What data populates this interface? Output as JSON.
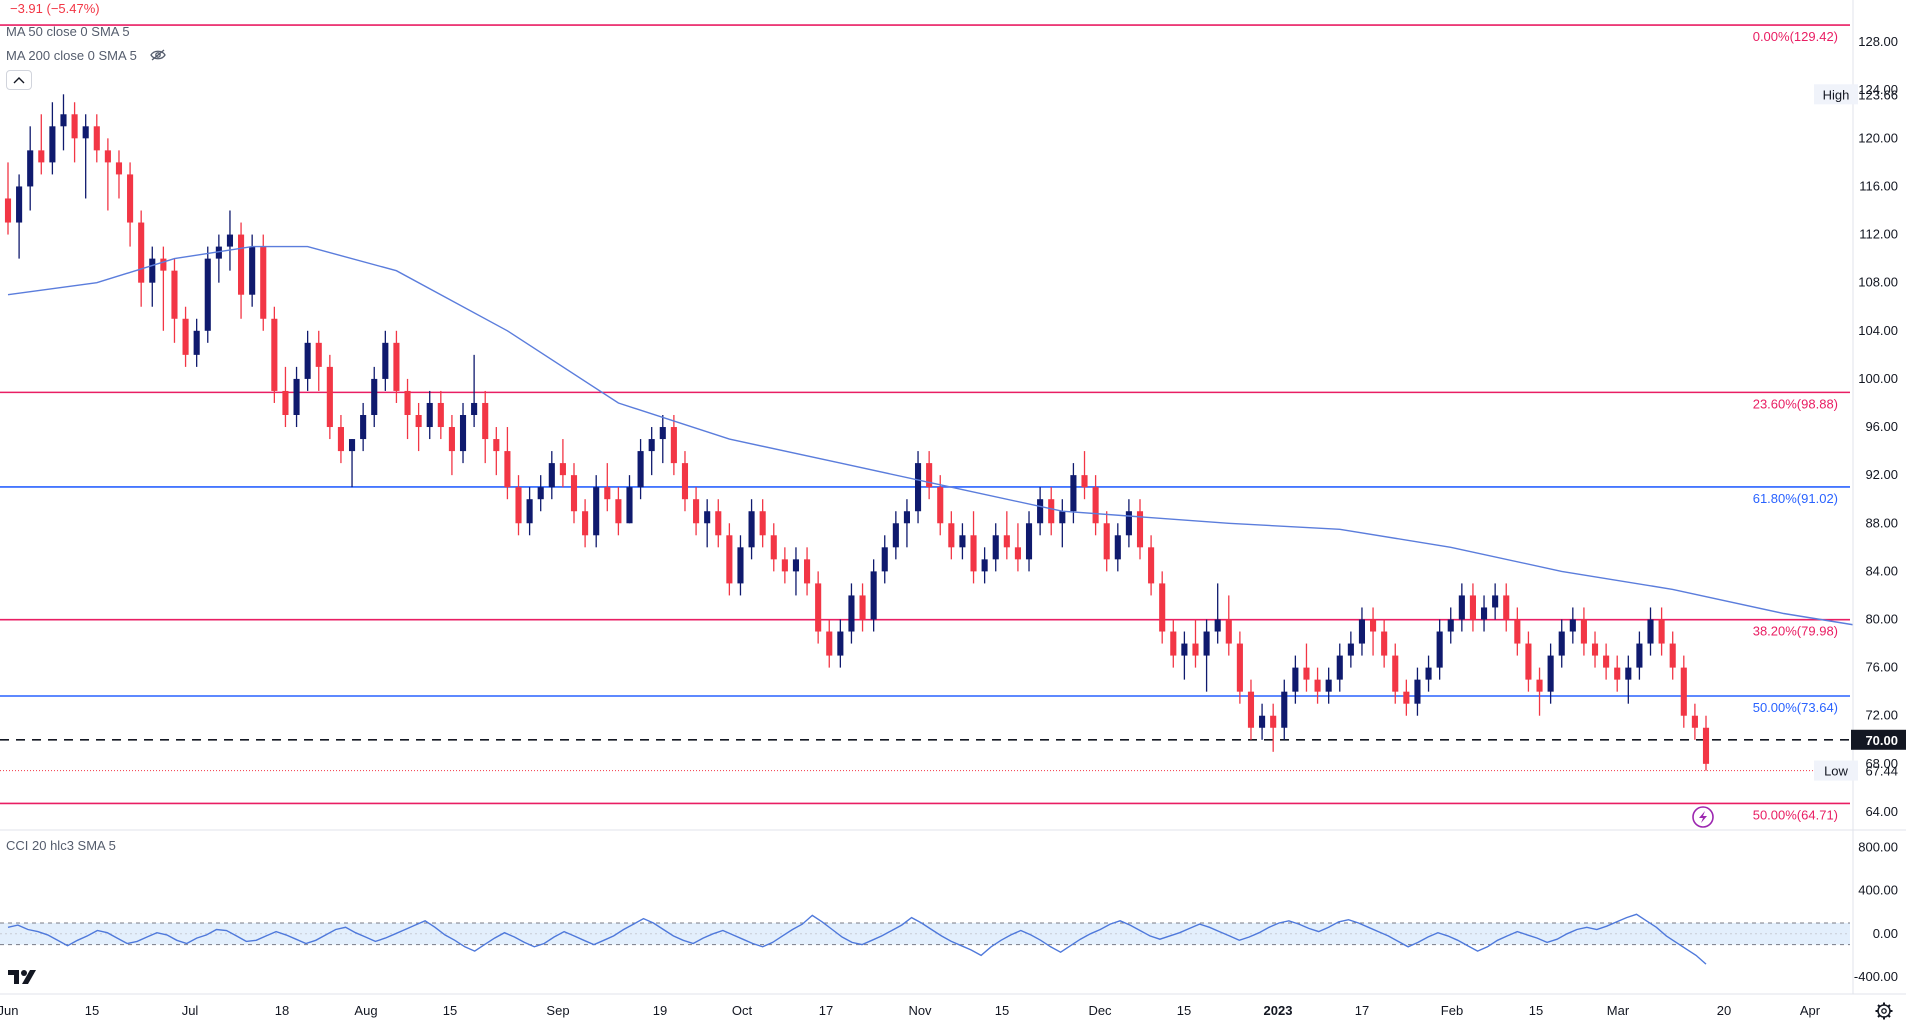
{
  "legend": {
    "change": "−3.91 (−5.47%)",
    "ma50": "MA 50 close 0 SMA 5",
    "ma200": "MA 200 close 0 SMA 5",
    "cci": "CCI 20 hlc3 SMA 5"
  },
  "colors": {
    "up": "#0f1a6e",
    "down": "#f23645",
    "ma": "#5b7ddc",
    "fib_pink": "#e91e63",
    "fib_blue": "#2962ff",
    "cci_line": "#4f79db",
    "cci_band": "#e3effc"
  },
  "price_axis": {
    "ticks": [
      "128.00",
      "124.00",
      "120.00",
      "116.00",
      "112.00",
      "108.00",
      "104.00",
      "100.00",
      "96.00",
      "92.00",
      "88.00",
      "84.00",
      "80.00",
      "76.00",
      "72.00",
      "68.00",
      "64.00"
    ],
    "range": [
      62.5,
      131.5
    ],
    "high_label": "High",
    "high_value": "123.66",
    "low_label": "Low",
    "low_value": "67.44",
    "current_value": "70.00"
  },
  "cci_axis": {
    "ticks": [
      "800.00",
      "400.00",
      "0.00",
      "-400.00"
    ],
    "range": [
      -520,
      960
    ],
    "band": [
      100,
      -100
    ]
  },
  "time_axis": {
    "labels": [
      "Jun",
      "15",
      "Jul",
      "18",
      "Aug",
      "15",
      "Sep",
      "19",
      "Oct",
      "17",
      "Nov",
      "15",
      "Dec",
      "15",
      "2023",
      "17",
      "Feb",
      "15",
      "Mar",
      "20",
      "Apr"
    ],
    "bold_label": "2023"
  },
  "fib_levels": [
    {
      "label": "0.00%(129.42)",
      "value": 129.42,
      "color": "pink"
    },
    {
      "label": "23.60%(98.88)",
      "value": 98.88,
      "color": "pink"
    },
    {
      "label": "61.80%(91.02)",
      "value": 91.02,
      "color": "blue"
    },
    {
      "label": "38.20%(79.98)",
      "value": 79.98,
      "color": "pink"
    },
    {
      "label": "50.00%(73.64)",
      "value": 73.64,
      "color": "blue"
    },
    {
      "label": "50.00%(64.71)",
      "value": 64.71,
      "color": "pink"
    }
  ],
  "support_line": 70.0,
  "icons": [
    "chevron-up-icon",
    "eye-off-icon",
    "tradingview-logo-icon",
    "lightning-icon",
    "settings-gear-icon"
  ],
  "chart_data": {
    "type": "candlestick",
    "x_range": [
      "Jun 2022",
      "Apr 2023"
    ],
    "y_range": [
      62.5,
      131.5
    ],
    "ohlc": [
      [
        115,
        118,
        112,
        113
      ],
      [
        113,
        117,
        110,
        116
      ],
      [
        116,
        121,
        114,
        119
      ],
      [
        119,
        122,
        117,
        118
      ],
      [
        118,
        123,
        117,
        121
      ],
      [
        121,
        123.66,
        119,
        122
      ],
      [
        122,
        123,
        118,
        120
      ],
      [
        120,
        122,
        115,
        121
      ],
      [
        121,
        122,
        118,
        119
      ],
      [
        119,
        120,
        114,
        118
      ],
      [
        118,
        119,
        115,
        117
      ],
      [
        117,
        118,
        111,
        113
      ],
      [
        113,
        114,
        106,
        108
      ],
      [
        108,
        111,
        106,
        110
      ],
      [
        110,
        111,
        104,
        109
      ],
      [
        109,
        110,
        103,
        105
      ],
      [
        105,
        106,
        101,
        102
      ],
      [
        102,
        105,
        101,
        104
      ],
      [
        104,
        111,
        103,
        110
      ],
      [
        110,
        112,
        108,
        111
      ],
      [
        111,
        114,
        109,
        112
      ],
      [
        112,
        113,
        105,
        107
      ],
      [
        107,
        112,
        106,
        111
      ],
      [
        111,
        112,
        104,
        105
      ],
      [
        105,
        106,
        98,
        99
      ],
      [
        99,
        101,
        96,
        97
      ],
      [
        97,
        101,
        96,
        100
      ],
      [
        100,
        104,
        99,
        103
      ],
      [
        103,
        104,
        99,
        101
      ],
      [
        101,
        102,
        95,
        96
      ],
      [
        96,
        97,
        93,
        94
      ],
      [
        94,
        95,
        91,
        95
      ],
      [
        95,
        98,
        94,
        97
      ],
      [
        97,
        101,
        96,
        100
      ],
      [
        100,
        104,
        99,
        103
      ],
      [
        103,
        104,
        98,
        99
      ],
      [
        99,
        100,
        95,
        97
      ],
      [
        97,
        98,
        94,
        96
      ],
      [
        96,
        99,
        95,
        98
      ],
      [
        98,
        99,
        95,
        96
      ],
      [
        96,
        97,
        92,
        94
      ],
      [
        94,
        98,
        93,
        97
      ],
      [
        97,
        102,
        96,
        98
      ],
      [
        98,
        99,
        93,
        95
      ],
      [
        95,
        96,
        92,
        94
      ],
      [
        94,
        96,
        90,
        91
      ],
      [
        91,
        92,
        87,
        88
      ],
      [
        88,
        91,
        87,
        90
      ],
      [
        90,
        92,
        89,
        91
      ],
      [
        91,
        94,
        90,
        93
      ],
      [
        93,
        95,
        91,
        92
      ],
      [
        92,
        93,
        88,
        89
      ],
      [
        89,
        90,
        86,
        87
      ],
      [
        87,
        92,
        86,
        91
      ],
      [
        91,
        93,
        89,
        90
      ],
      [
        90,
        91,
        87,
        88
      ],
      [
        88,
        92,
        88,
        91
      ],
      [
        91,
        95,
        90,
        94
      ],
      [
        94,
        96,
        92,
        95
      ],
      [
        95,
        97,
        93,
        96
      ],
      [
        96,
        97,
        92,
        93
      ],
      [
        93,
        94,
        89,
        90
      ],
      [
        90,
        91,
        87,
        88
      ],
      [
        88,
        90,
        86,
        89
      ],
      [
        89,
        90,
        86,
        87
      ],
      [
        87,
        88,
        82,
        83
      ],
      [
        83,
        87,
        82,
        86
      ],
      [
        86,
        90,
        85,
        89
      ],
      [
        89,
        90,
        86,
        87
      ],
      [
        87,
        88,
        84,
        85
      ],
      [
        85,
        86,
        83,
        84
      ],
      [
        84,
        86,
        82,
        85
      ],
      [
        85,
        86,
        82,
        83
      ],
      [
        83,
        84,
        78,
        79
      ],
      [
        79,
        80,
        76,
        77
      ],
      [
        77,
        80,
        76,
        79
      ],
      [
        79,
        83,
        78,
        82
      ],
      [
        82,
        83,
        79,
        80
      ],
      [
        80,
        85,
        79,
        84
      ],
      [
        84,
        87,
        83,
        86
      ],
      [
        86,
        89,
        85,
        88
      ],
      [
        88,
        90,
        86,
        89
      ],
      [
        89,
        94,
        88,
        93
      ],
      [
        93,
        94,
        90,
        91
      ],
      [
        91,
        92,
        87,
        88
      ],
      [
        88,
        89,
        85,
        86
      ],
      [
        86,
        88,
        85,
        87
      ],
      [
        87,
        89,
        83,
        84
      ],
      [
        84,
        86,
        83,
        85
      ],
      [
        85,
        88,
        84,
        87
      ],
      [
        87,
        89,
        85,
        86
      ],
      [
        86,
        88,
        84,
        85
      ],
      [
        85,
        89,
        84,
        88
      ],
      [
        88,
        91,
        87,
        90
      ],
      [
        90,
        91,
        87,
        88
      ],
      [
        88,
        90,
        86,
        89
      ],
      [
        89,
        93,
        88,
        92
      ],
      [
        92,
        94,
        90,
        91
      ],
      [
        91,
        92,
        87,
        88
      ],
      [
        88,
        89,
        84,
        85
      ],
      [
        85,
        88,
        84,
        87
      ],
      [
        87,
        90,
        86,
        89
      ],
      [
        89,
        90,
        85,
        86
      ],
      [
        86,
        87,
        82,
        83
      ],
      [
        83,
        84,
        78,
        79
      ],
      [
        79,
        80,
        76,
        77
      ],
      [
        77,
        79,
        75,
        78
      ],
      [
        78,
        80,
        76,
        77
      ],
      [
        77,
        80,
        74,
        79
      ],
      [
        79,
        83,
        78,
        80
      ],
      [
        80,
        82,
        77,
        78
      ],
      [
        78,
        79,
        73,
        74
      ],
      [
        74,
        75,
        70,
        71
      ],
      [
        71,
        73,
        70,
        72
      ],
      [
        72,
        73,
        69,
        71
      ],
      [
        71,
        75,
        70,
        74
      ],
      [
        74,
        77,
        73,
        76
      ],
      [
        76,
        78,
        74,
        75
      ],
      [
        75,
        76,
        73,
        74
      ],
      [
        74,
        76,
        73,
        75
      ],
      [
        75,
        78,
        74,
        77
      ],
      [
        77,
        79,
        76,
        78
      ],
      [
        78,
        81,
        77,
        80
      ],
      [
        80,
        81,
        77,
        79
      ],
      [
        79,
        80,
        76,
        77
      ],
      [
        77,
        78,
        73,
        74
      ],
      [
        74,
        75,
        72,
        73
      ],
      [
        73,
        76,
        72,
        75
      ],
      [
        75,
        77,
        74,
        76
      ],
      [
        76,
        80,
        75,
        79
      ],
      [
        79,
        81,
        78,
        80
      ],
      [
        80,
        83,
        79,
        82
      ],
      [
        82,
        83,
        79,
        80
      ],
      [
        80,
        82,
        79,
        81
      ],
      [
        81,
        83,
        80,
        82
      ],
      [
        82,
        83,
        79,
        80
      ],
      [
        80,
        81,
        77,
        78
      ],
      [
        78,
        79,
        74,
        75
      ],
      [
        75,
        76,
        72,
        74
      ],
      [
        74,
        78,
        73,
        77
      ],
      [
        77,
        80,
        76,
        79
      ],
      [
        79,
        81,
        78,
        80
      ],
      [
        80,
        81,
        77,
        78
      ],
      [
        78,
        79,
        76,
        77
      ],
      [
        77,
        78,
        75,
        76
      ],
      [
        76,
        77,
        74,
        75
      ],
      [
        75,
        77,
        73,
        76
      ],
      [
        76,
        79,
        75,
        78
      ],
      [
        78,
        81,
        77,
        80
      ],
      [
        80,
        81,
        77,
        78
      ],
      [
        78,
        79,
        75,
        76
      ],
      [
        76,
        77,
        71,
        72
      ],
      [
        72,
        73,
        70,
        71
      ],
      [
        71,
        72,
        67.44,
        68
      ]
    ],
    "ma50_points": [
      [
        0,
        107
      ],
      [
        8,
        108
      ],
      [
        15,
        110
      ],
      [
        22,
        111
      ],
      [
        27,
        111
      ],
      [
        35,
        109
      ],
      [
        45,
        104
      ],
      [
        55,
        98
      ],
      [
        65,
        95
      ],
      [
        75,
        93
      ],
      [
        85,
        91
      ],
      [
        95,
        89
      ],
      [
        110,
        88
      ],
      [
        120,
        87.5
      ],
      [
        130,
        86
      ],
      [
        140,
        84
      ],
      [
        150,
        82.5
      ],
      [
        160,
        80.5
      ],
      [
        170,
        79
      ],
      [
        180,
        77.5
      ],
      [
        188,
        77.2
      ],
      [
        195,
        77.0
      ],
      [
        203,
        77.0
      ],
      [
        211,
        76.5
      ]
    ],
    "cci_values": [
      60,
      80,
      40,
      20,
      -10,
      -60,
      -110,
      -60,
      -20,
      30,
      10,
      -40,
      -90,
      -70,
      -30,
      10,
      -10,
      -60,
      -90,
      -40,
      -10,
      40,
      30,
      -20,
      -70,
      -60,
      -20,
      20,
      -10,
      -50,
      -90,
      -60,
      -10,
      40,
      60,
      10,
      -30,
      -70,
      -40,
      0,
      40,
      80,
      120,
      60,
      -10,
      -60,
      -120,
      -160,
      -100,
      -40,
      10,
      -30,
      -80,
      -120,
      -90,
      -30,
      20,
      -20,
      -60,
      -100,
      -60,
      -20,
      40,
      90,
      140,
      100,
      40,
      -20,
      -60,
      -90,
      -40,
      0,
      30,
      -10,
      -50,
      -90,
      -120,
      -80,
      -20,
      40,
      90,
      170,
      110,
      40,
      -30,
      -80,
      -100,
      -60,
      -20,
      30,
      80,
      150,
      100,
      40,
      -20,
      -70,
      -110,
      -150,
      -200,
      -120,
      -60,
      -10,
      30,
      -10,
      -60,
      -120,
      -170,
      -110,
      -50,
      0,
      40,
      90,
      120,
      80,
      30,
      -20,
      -50,
      -20,
      10,
      50,
      90,
      60,
      20,
      -20,
      -60,
      -30,
      10,
      60,
      100,
      120,
      90,
      50,
      20,
      60,
      110,
      130,
      100,
      60,
      20,
      -20,
      -70,
      -120,
      -80,
      -30,
      10,
      -20,
      -60,
      -110,
      -160,
      -120,
      -60,
      -20,
      20,
      -10,
      -40,
      -80,
      -50,
      0,
      40,
      60,
      40,
      70,
      110,
      150,
      180,
      120,
      60,
      -20,
      -80,
      -140,
      -200,
      -280
    ]
  }
}
